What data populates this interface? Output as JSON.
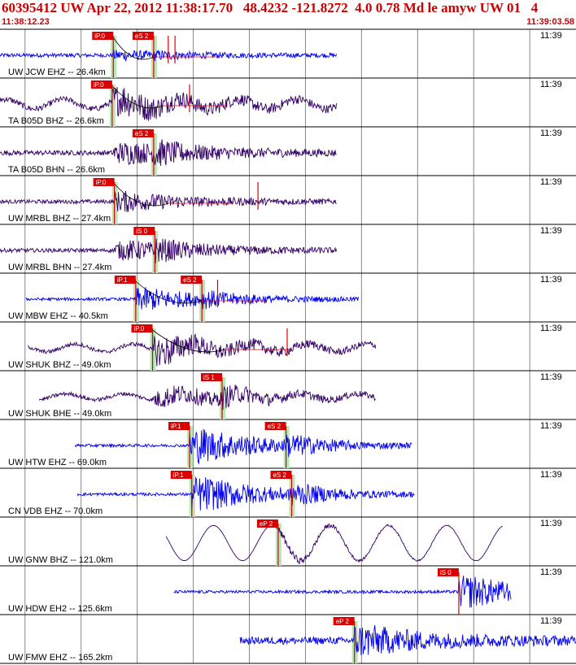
{
  "header": {
    "title": "60395412 UW Apr 22, 2012 11:38:17.70   48.4232 -121.8272  4.0 0.78 Md le amyw UW 01   4",
    "time_start": "11:38:12.23",
    "time_end": "11:39:03.58"
  },
  "colors": {
    "header_text": "#cc0000",
    "trace_blue": "#0000ee",
    "trace_purple": "#330066",
    "pick_marker": "#dd0000",
    "phase_band": "#b8e6b8",
    "grid": "#888888",
    "fit_curve": "#000000"
  },
  "chart_data": {
    "type": "line",
    "x_unit": "seconds after 11:38:12.23",
    "xlim": [
      0,
      51.35
    ],
    "minute_marks": [
      2.23,
      7.23,
      12.23,
      17.23,
      22.23,
      27.23,
      32.23,
      37.23,
      42.23,
      47.23
    ],
    "tracks": [
      {
        "label": "UW JCW EHZ -- 26.4km",
        "minute_label": "11:39",
        "color": "blue",
        "trace_start": 0,
        "trace_end": 30.0,
        "pre_amp": 0.08,
        "coda_amp": 0.12,
        "signal_start": 10.1,
        "low_freq": 0,
        "picks": [
          {
            "label": "iP.0",
            "time": 10.1,
            "band": true
          },
          {
            "label": "eS 2",
            "time": 13.7,
            "band": true
          }
        ],
        "markers": [
          15.0,
          15.6
        ],
        "fit": [
          10.1,
          11.8,
          13.7
        ]
      },
      {
        "label": "TA B05D BHZ -- 26.6km",
        "minute_label": "11:39",
        "color": "purple",
        "trace_start": 0,
        "trace_end": 30.0,
        "pre_amp": 0.12,
        "coda_amp": 0.45,
        "signal_start": 10.0,
        "low_freq": 0.25,
        "picks": [
          {
            "label": "iP.0",
            "time": 10.0,
            "band": true
          }
        ],
        "markers": [
          16.9
        ],
        "fit": [
          10.0,
          12.5,
          14.5
        ]
      },
      {
        "label": "TA B05D BHN -- 26.6km",
        "minute_label": "11:39",
        "color": "purple",
        "trace_start": 0,
        "trace_end": 30.0,
        "pre_amp": 0.1,
        "coda_amp": 0.45,
        "signal_start": 10.0,
        "low_freq": 0,
        "picks": [
          {
            "label": "eS 2",
            "time": 13.7,
            "band": true
          }
        ],
        "markers": [],
        "fit": []
      },
      {
        "label": "UW MRBL BHZ -- 27.4km",
        "minute_label": "11:39",
        "color": "purple",
        "trace_start": 0,
        "trace_end": 30.0,
        "pre_amp": 0.08,
        "coda_amp": 0.3,
        "signal_start": 10.2,
        "low_freq": 0,
        "picks": [
          {
            "label": "iP.0",
            "time": 10.2,
            "band": true
          }
        ],
        "markers": [
          23.0
        ],
        "fit": [
          10.2,
          12.5,
          15.0
        ]
      },
      {
        "label": "UW MRBL BHN -- 27.4km",
        "minute_label": "11:39",
        "color": "purple",
        "trace_start": 0,
        "trace_end": 30.0,
        "pre_amp": 0.08,
        "coda_amp": 0.4,
        "signal_start": 10.2,
        "low_freq": 0,
        "picks": [
          {
            "label": "iS 0",
            "time": 13.8,
            "band": true
          }
        ],
        "markers": [],
        "fit": []
      },
      {
        "label": "UW MBW EHZ -- 40.5km",
        "minute_label": "11:39",
        "color": "blue",
        "trace_start": 2.3,
        "trace_end": 32.0,
        "pre_amp": 0.06,
        "coda_amp": 0.35,
        "signal_start": 12.1,
        "low_freq": 0,
        "picks": [
          {
            "label": "iP.1",
            "time": 12.1,
            "band": true
          },
          {
            "label": "eS 2",
            "time": 18.0,
            "band": true
          }
        ],
        "markers": [
          19.4
        ],
        "fit": [
          12.1,
          15.0,
          18.0
        ]
      },
      {
        "label": "UW SHUK BHZ -- 49.0km",
        "minute_label": "11:39",
        "color": "purple",
        "trace_start": 2.5,
        "trace_end": 33.5,
        "pre_amp": 0.08,
        "coda_amp": 0.45,
        "signal_start": 13.6,
        "low_freq": 0.2,
        "picks": [
          {
            "label": "iP.0",
            "time": 13.6,
            "band": true
          }
        ],
        "markers": [
          25.6
        ],
        "fit": [
          13.6,
          17.0,
          20.0
        ]
      },
      {
        "label": "UW SHUK BHE -- 49.0km",
        "minute_label": "11:39",
        "color": "purple",
        "trace_start": 3.5,
        "trace_end": 33.5,
        "pre_amp": 0.08,
        "coda_amp": 0.4,
        "signal_start": 13.6,
        "low_freq": 0.15,
        "picks": [
          {
            "label": "iS 1",
            "time": 19.8,
            "band": true
          }
        ],
        "markers": [],
        "fit": []
      },
      {
        "label": "UW HTW EHZ -- 69.0km",
        "minute_label": "11:39",
        "color": "blue",
        "trace_start": 6.7,
        "trace_end": 36.7,
        "pre_amp": 0.06,
        "coda_amp": 0.55,
        "signal_start": 16.9,
        "low_freq": 0,
        "picks": [
          {
            "label": "iP.1",
            "time": 16.9,
            "band": true
          },
          {
            "label": "eS 2",
            "time": 25.5,
            "band": true
          }
        ],
        "markers": [],
        "fit": []
      },
      {
        "label": "CN VDB EHZ -- 70.0km",
        "minute_label": "11:39",
        "color": "blue",
        "trace_start": 6.9,
        "trace_end": 37.0,
        "pre_amp": 0.06,
        "coda_amp": 0.55,
        "signal_start": 17.1,
        "low_freq": 0,
        "picks": [
          {
            "label": "iP.1",
            "time": 17.1,
            "band": true
          },
          {
            "label": "eS 2",
            "time": 26.0,
            "band": true
          }
        ],
        "markers": [],
        "fit": []
      },
      {
        "label": "UW GNW BHZ -- 121.0km",
        "minute_label": "11:39",
        "color": "purple",
        "trace_start": 14.8,
        "trace_end": 44.8,
        "pre_amp": 0.0,
        "coda_amp": 0.12,
        "signal_start": 24.8,
        "low_freq": 0.9,
        "picks": [
          {
            "label": "eP 2",
            "time": 24.8,
            "band": true
          }
        ],
        "markers": [],
        "fit": []
      },
      {
        "label": "UW HDW EH2 -- 125.6km",
        "minute_label": "11:39",
        "color": "blue",
        "trace_start": 15.5,
        "trace_end": 45.6,
        "pre_amp": 0.06,
        "coda_amp": 0.5,
        "signal_start": 40.9,
        "low_freq": 0,
        "picks": [
          {
            "label": "iS 0",
            "time": 40.9,
            "band": false
          }
        ],
        "markers": [],
        "fit": []
      },
      {
        "label": "UW FMW EHZ -- 165.2km",
        "minute_label": "11:39",
        "color": "blue",
        "trace_start": 21.4,
        "trace_end": 51.35,
        "pre_amp": 0.15,
        "coda_amp": 0.45,
        "signal_start": 31.6,
        "low_freq": 0,
        "picks": [
          {
            "label": "eP 2",
            "time": 31.6,
            "band": true
          }
        ],
        "markers": [],
        "fit": []
      }
    ]
  }
}
